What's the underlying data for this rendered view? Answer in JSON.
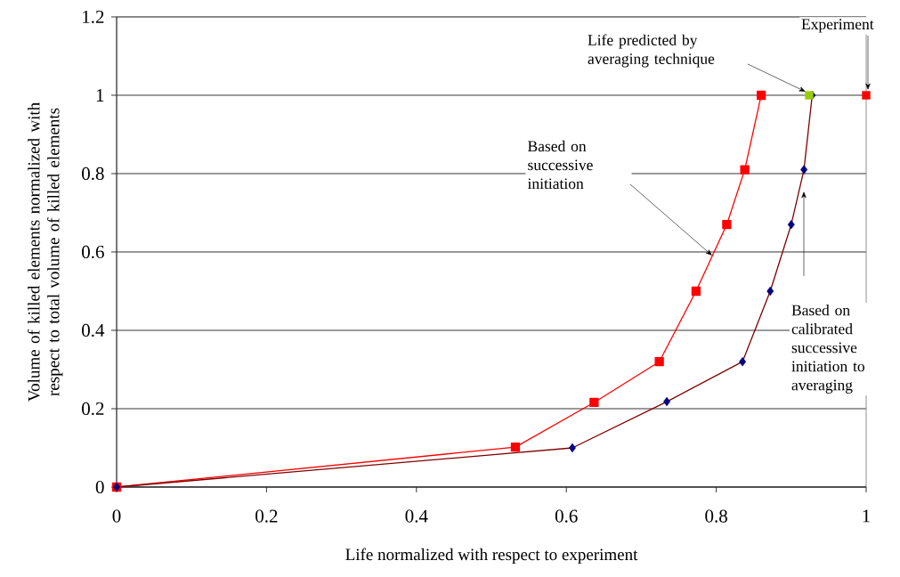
{
  "chart_data": {
    "type": "line",
    "xlabel": "Life normalized with respect to experiment",
    "ylabel": "Volume of killed elements normalized with respect to total volume of killed elements",
    "xlim": [
      0,
      1
    ],
    "ylim": [
      0,
      1.2
    ],
    "xticks": [
      0,
      0.2,
      0.4,
      0.6,
      0.8,
      1
    ],
    "yticks": [
      0,
      0.2,
      0.4,
      0.6,
      0.8,
      1,
      1.2
    ],
    "grid": "y",
    "series": [
      {
        "type": "line",
        "color": "#ff0000",
        "marker": "square",
        "x": [
          0,
          0.532,
          0.637,
          0.724,
          0.773,
          0.814,
          0.838,
          0.86
        ],
        "values": [
          0,
          0.102,
          0.216,
          0.32,
          0.5,
          0.67,
          0.81,
          1
        ]
      },
      {
        "type": "line",
        "color": "#800000",
        "marker": "diamond",
        "colors": [
          "#000080",
          "#000080",
          "#000080",
          "#000080",
          "#000080",
          "#000080",
          "#000080",
          "#000080"
        ],
        "x": [
          0,
          0.608,
          0.734,
          0.835,
          0.872,
          0.9,
          0.917,
          0.928
        ],
        "values": [
          0,
          0.1,
          0.218,
          0.32,
          0.5,
          0.67,
          0.81,
          1
        ]
      },
      {
        "type": "scatter",
        "color": "#99cc00",
        "marker": "square",
        "x": [
          0.924
        ],
        "values": [
          1
        ]
      },
      {
        "type": "scatter",
        "color": "#ff0000",
        "marker": "square",
        "x": [
          1
        ],
        "values": [
          1
        ]
      }
    ],
    "annotations": [
      "Life predicted by averaging technique",
      "Experiment",
      "Based on successive initiation",
      "Based on calibrated successive initiation to averaging"
    ]
  }
}
